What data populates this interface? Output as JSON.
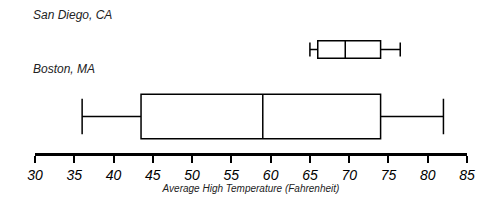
{
  "chart_data": {
    "type": "box",
    "orientation": "horizontal",
    "xlabel": "Average High Temperature (Fahrenheit)",
    "xlim": [
      30,
      85
    ],
    "xticks": [
      30,
      35,
      40,
      45,
      50,
      55,
      60,
      65,
      70,
      75,
      80,
      85
    ],
    "tick_labels": "x",
    "grid": false,
    "color": "#000000",
    "series": [
      {
        "name": "Boston, MA",
        "min": 36,
        "q1": 43.5,
        "median": 59,
        "q3": 74,
        "max": 82
      },
      {
        "name": "San Diego, CA",
        "min": 65,
        "q1": 66,
        "median": 69.5,
        "q3": 74,
        "max": 76.5
      }
    ]
  }
}
